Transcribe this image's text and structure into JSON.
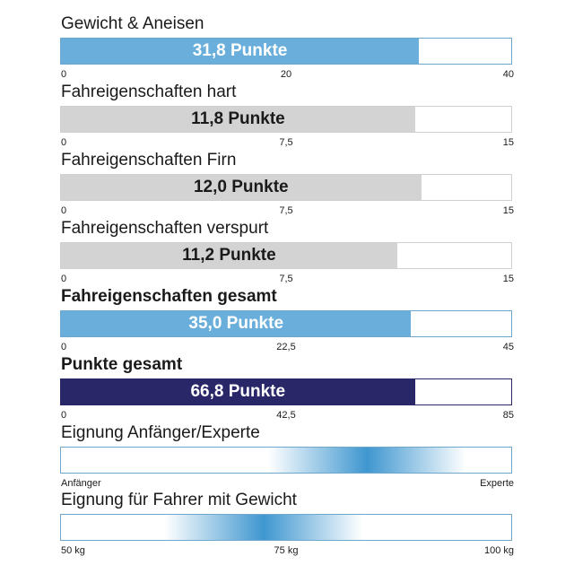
{
  "chart_data": [
    {
      "type": "bar",
      "title": "Gewicht & Aneisen",
      "title_bold": false,
      "value": 31.8,
      "value_label": "31,8 Punkte",
      "xlim": [
        0,
        40
      ],
      "ticks": [
        "0",
        "20",
        "40"
      ],
      "fill_color": "#6aafdb",
      "text_color": "#ffffff",
      "border_color": "#6fa6cc"
    },
    {
      "type": "bar",
      "title": "Fahreigenschaften hart",
      "title_bold": false,
      "value": 11.8,
      "value_label": "11,8 Punkte",
      "xlim": [
        0,
        15
      ],
      "ticks": [
        "0",
        "7,5",
        "15"
      ],
      "fill_color": "#d3d3d3",
      "text_color": "#1a1a1a",
      "border_color": "#d0d0d0"
    },
    {
      "type": "bar",
      "title": "Fahreigenschaften Firn",
      "title_bold": false,
      "value": 12.0,
      "value_label": "12,0 Punkte",
      "xlim": [
        0,
        15
      ],
      "ticks": [
        "0",
        "7,5",
        "15"
      ],
      "fill_color": "#d3d3d3",
      "text_color": "#1a1a1a",
      "border_color": "#d0d0d0"
    },
    {
      "type": "bar",
      "title": "Fahreigenschaften verspurt",
      "title_bold": false,
      "value": 11.2,
      "value_label": "11,2 Punkte",
      "xlim": [
        0,
        15
      ],
      "ticks": [
        "0",
        "7,5",
        "15"
      ],
      "fill_color": "#d3d3d3",
      "text_color": "#1a1a1a",
      "border_color": "#d0d0d0"
    },
    {
      "type": "bar",
      "title": "Fahreigenschaften gesamt",
      "title_bold": true,
      "value": 35.0,
      "value_label": "35,0 Punkte",
      "xlim": [
        0,
        45
      ],
      "ticks": [
        "0",
        "22,5",
        "45"
      ],
      "fill_color": "#6aafdb",
      "text_color": "#ffffff",
      "border_color": "#6fa6cc"
    },
    {
      "type": "bar",
      "title": "Punkte gesamt",
      "title_bold": true,
      "value": 66.8,
      "value_label": "66,8 Punkte",
      "xlim": [
        0,
        85
      ],
      "ticks": [
        "0",
        "42,5",
        "85"
      ],
      "fill_color": "#2a2768",
      "text_color": "#ffffff",
      "border_color": "#2a2768"
    },
    {
      "type": "gradient-scale",
      "title": "Eignung Anfänger/Experte",
      "title_bold": false,
      "peak": 0.68,
      "spread": 0.22,
      "ticks": [
        "Anfänger",
        "Experte"
      ],
      "peak_color": "#3f97d0",
      "border_color": "#6fa6cc"
    },
    {
      "type": "gradient-scale",
      "title": "Eignung für Fahrer mit Gewicht",
      "title_bold": false,
      "peak": 0.45,
      "spread": 0.22,
      "ticks": [
        "50 kg",
        "75 kg",
        "100 kg"
      ],
      "peak_color": "#3f97d0",
      "border_color": "#6fa6cc"
    }
  ]
}
